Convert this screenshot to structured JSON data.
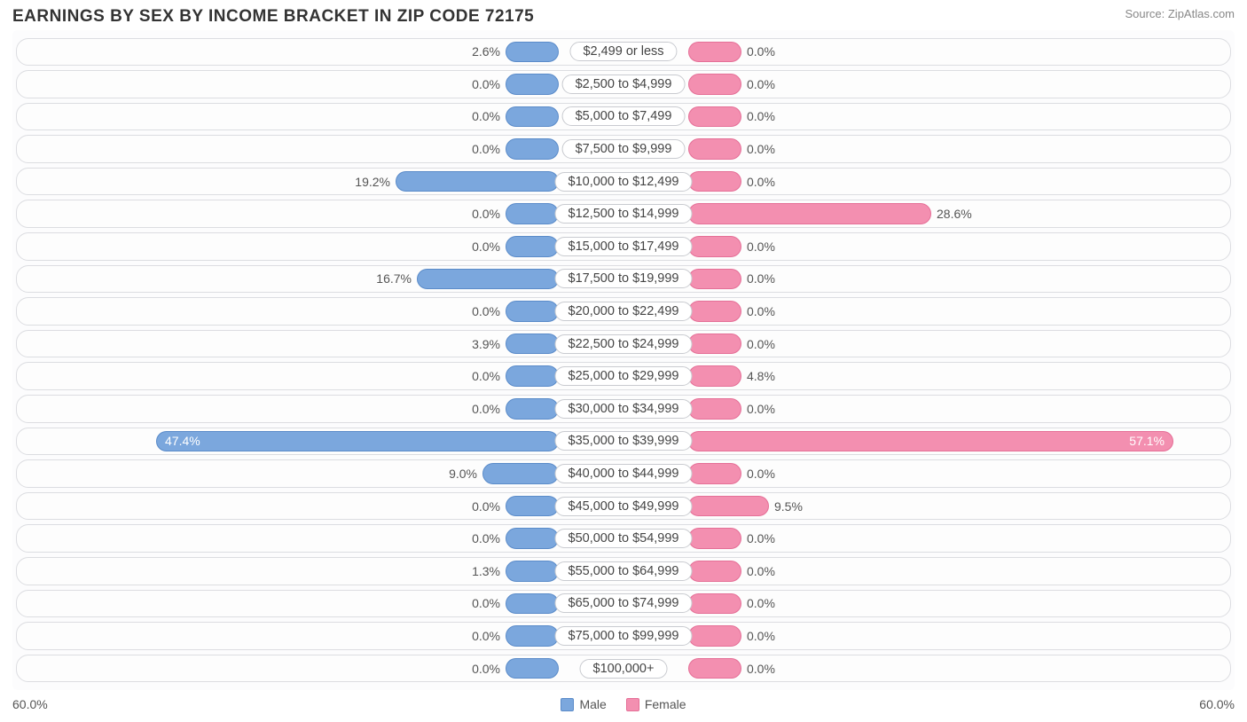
{
  "title": "EARNINGS BY SEX BY INCOME BRACKET IN ZIP CODE 72175",
  "source": "Source: ZipAtlas.com",
  "chart": {
    "type": "diverging-bar",
    "axis_max_percent": 60.0,
    "axis_label_left": "60.0%",
    "axis_label_right": "60.0%",
    "min_bar_percent": 5.0,
    "male_color": "#7ba7dd",
    "male_border": "#5a8bc9",
    "female_color": "#f38fb0",
    "female_border": "#e56f97",
    "background_color": "#fcfcfd",
    "track_border_color": "#dcdde1",
    "label_border_color": "#c9cbd0",
    "text_color": "#555555",
    "rows": [
      {
        "label": "$2,499 or less",
        "male": 2.6,
        "female": 0.0
      },
      {
        "label": "$2,500 to $4,999",
        "male": 0.0,
        "female": 0.0
      },
      {
        "label": "$5,000 to $7,499",
        "male": 0.0,
        "female": 0.0
      },
      {
        "label": "$7,500 to $9,999",
        "male": 0.0,
        "female": 0.0
      },
      {
        "label": "$10,000 to $12,499",
        "male": 19.2,
        "female": 0.0
      },
      {
        "label": "$12,500 to $14,999",
        "male": 0.0,
        "female": 28.6
      },
      {
        "label": "$15,000 to $17,499",
        "male": 0.0,
        "female": 0.0
      },
      {
        "label": "$17,500 to $19,999",
        "male": 16.7,
        "female": 0.0
      },
      {
        "label": "$20,000 to $22,499",
        "male": 0.0,
        "female": 0.0
      },
      {
        "label": "$22,500 to $24,999",
        "male": 3.9,
        "female": 0.0
      },
      {
        "label": "$25,000 to $29,999",
        "male": 0.0,
        "female": 4.8
      },
      {
        "label": "$30,000 to $34,999",
        "male": 0.0,
        "female": 0.0
      },
      {
        "label": "$35,000 to $39,999",
        "male": 47.4,
        "female": 57.1
      },
      {
        "label": "$40,000 to $44,999",
        "male": 9.0,
        "female": 0.0
      },
      {
        "label": "$45,000 to $49,999",
        "male": 0.0,
        "female": 9.5
      },
      {
        "label": "$50,000 to $54,999",
        "male": 0.0,
        "female": 0.0
      },
      {
        "label": "$55,000 to $64,999",
        "male": 1.3,
        "female": 0.0
      },
      {
        "label": "$65,000 to $74,999",
        "male": 0.0,
        "female": 0.0
      },
      {
        "label": "$75,000 to $99,999",
        "male": 0.0,
        "female": 0.0
      },
      {
        "label": "$100,000+",
        "male": 0.0,
        "female": 0.0
      }
    ],
    "legend": {
      "male_label": "Male",
      "female_label": "Female"
    }
  }
}
